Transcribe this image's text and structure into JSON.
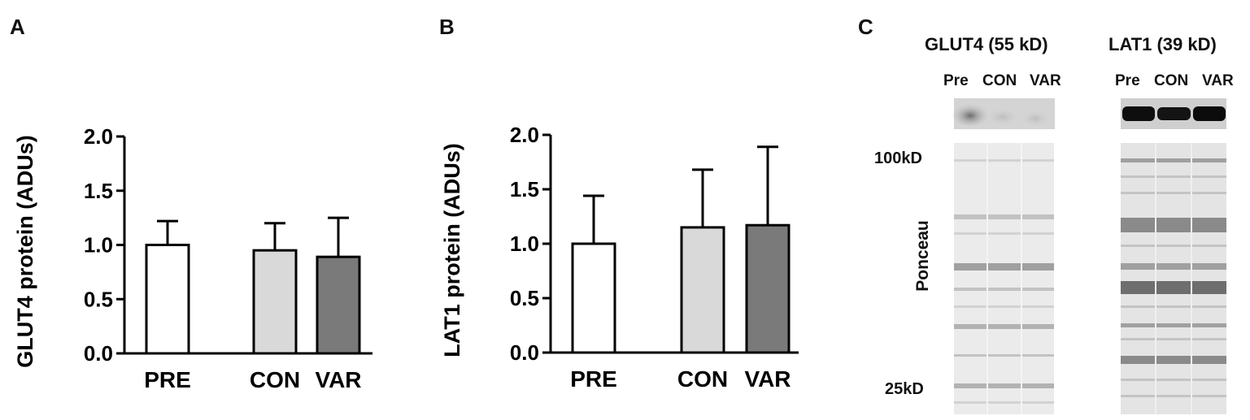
{
  "panels": {
    "a": {
      "letter": "A"
    },
    "b": {
      "letter": "B"
    },
    "c": {
      "letter": "C"
    }
  },
  "chart_data": [
    {
      "type": "bar",
      "panel": "A",
      "ylabel": "GLUT4 protein (ADUs)",
      "xlabel": "",
      "categories": [
        "PRE",
        "CON",
        "VAR"
      ],
      "values": [
        1.0,
        0.95,
        0.89
      ],
      "errors": [
        0.22,
        0.25,
        0.36
      ],
      "colors": [
        "#ffffff",
        "#d9d9d9",
        "#7a7a7a"
      ],
      "ylim": [
        0.0,
        2.0
      ],
      "yticks": [
        "0.0",
        "0.5",
        "1.0",
        "1.5",
        "2.0"
      ],
      "grid": false
    },
    {
      "type": "bar",
      "panel": "B",
      "ylabel": "LAT1 protein (ADUs)",
      "xlabel": "",
      "categories": [
        "PRE",
        "CON",
        "VAR"
      ],
      "values": [
        1.0,
        1.15,
        1.17
      ],
      "errors": [
        0.44,
        0.53,
        0.72
      ],
      "colors": [
        "#ffffff",
        "#d9d9d9",
        "#7a7a7a"
      ],
      "ylim": [
        0.0,
        2.0
      ],
      "yticks": [
        "0.0",
        "0.5",
        "1.0",
        "1.5",
        "2.0"
      ],
      "grid": false
    }
  ],
  "blots": {
    "glut4": {
      "title": "GLUT4 (55 kD)",
      "lanes": [
        "Pre",
        "CON",
        "VAR"
      ]
    },
    "lat1": {
      "title": "LAT1 (39 kD)",
      "lanes": [
        "Pre",
        "CON",
        "VAR"
      ]
    },
    "ponceau_label": "Ponceau",
    "markers": [
      "100kD",
      "25kD"
    ]
  }
}
